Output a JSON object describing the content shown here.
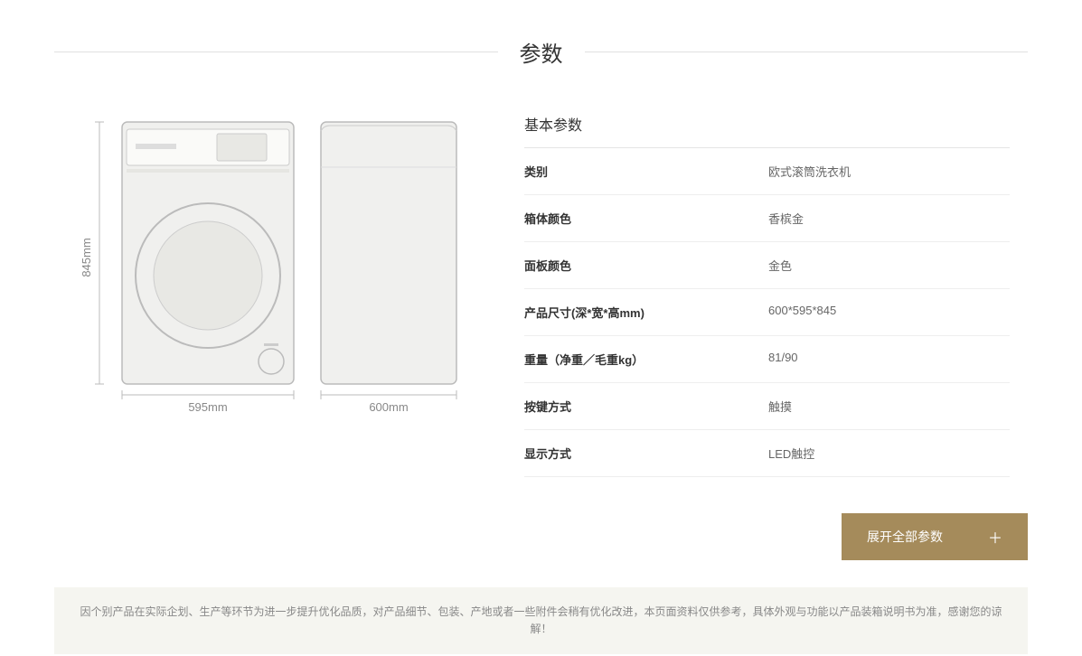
{
  "title": "参数",
  "section_title": "基本参数",
  "specs": [
    {
      "label": "类别",
      "value": "欧式滚筒洗衣机"
    },
    {
      "label": "箱体颜色",
      "value": "香槟金"
    },
    {
      "label": "面板颜色",
      "value": "金色"
    },
    {
      "label": "产品尺寸(深*宽*高mm)",
      "value": "600*595*845"
    },
    {
      "label": "重量（净重／毛重kg）",
      "value": "81/90"
    },
    {
      "label": "按键方式",
      "value": "触摸"
    },
    {
      "label": "显示方式",
      "value": "LED触控"
    }
  ],
  "expand_button": "展开全部参数",
  "disclaimer": "因个别产品在实际企划、生产等环节为进一步提升优化品质，对产品细节、包装、产地或者一些附件会稍有优化改进，本页面资料仅供参考，具体外观与功能以产品装箱说明书为准，感谢您的谅解！",
  "diagram": {
    "height_label": "845mm",
    "width_label": "595mm",
    "depth_label": "600mm",
    "stroke_color": "#bbbbbb",
    "fill_color": "#f0f0ee"
  },
  "colors": {
    "accent": "#a58b5b",
    "border": "#e5e5e5",
    "text_muted": "#888888",
    "disclaimer_bg": "#f5f5f0"
  }
}
